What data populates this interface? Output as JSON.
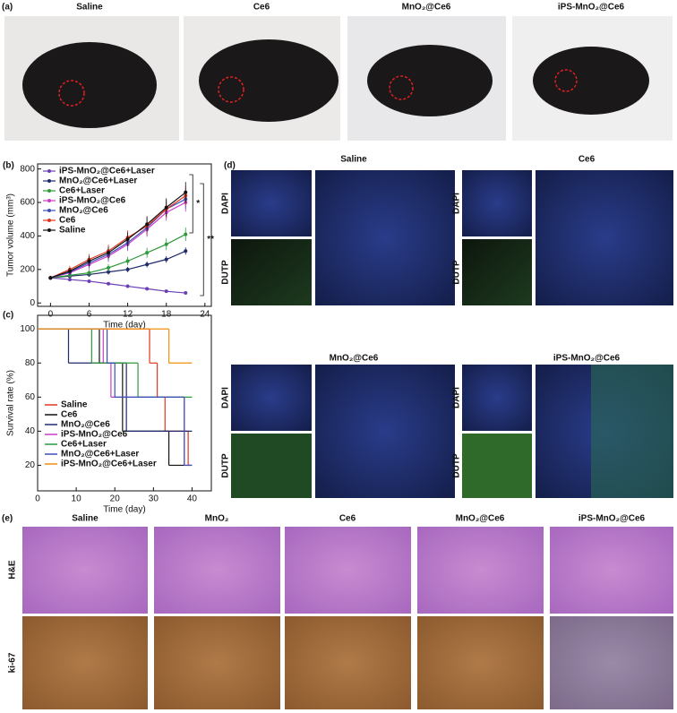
{
  "panel_a": {
    "label": "(a)",
    "titles": [
      "Saline",
      "Ce6",
      "MnO₂@Ce6",
      "iPS-MnO₂@Ce6"
    ]
  },
  "chart_data": [
    {
      "type": "line",
      "panel_label": "(b)",
      "xlabel": "Time (day)",
      "ylabel": "Tumor volume (mm³)",
      "x": [
        0,
        3,
        6,
        9,
        12,
        15,
        18,
        21
      ],
      "xlim": [
        -2,
        25
      ],
      "xticks": [
        0,
        6,
        12,
        18,
        24
      ],
      "ylim": [
        -20,
        830
      ],
      "yticks": [
        0,
        200,
        400,
        600,
        800
      ],
      "annotations": [
        "*",
        "**"
      ],
      "series": [
        {
          "name": "iPS-MnO₂@Ce6+Laser",
          "color": "#6a3fb5",
          "values": [
            150,
            140,
            130,
            115,
            100,
            85,
            70,
            60
          ],
          "errors": [
            8,
            8,
            8,
            8,
            7,
            6,
            6,
            5
          ]
        },
        {
          "name": "MnO₂@Ce6+Laser",
          "color": "#1f2a6b",
          "values": [
            150,
            160,
            170,
            185,
            200,
            230,
            260,
            310
          ],
          "errors": [
            10,
            12,
            14,
            15,
            16,
            18,
            20,
            22
          ]
        },
        {
          "name": "Ce6+Laser",
          "color": "#2e9a3a",
          "values": [
            150,
            165,
            180,
            210,
            250,
            300,
            350,
            410
          ],
          "errors": [
            10,
            14,
            18,
            22,
            25,
            30,
            35,
            40
          ]
        },
        {
          "name": "iPS-MnO₂@Ce6",
          "color": "#c83cc8",
          "values": [
            150,
            180,
            230,
            280,
            350,
            440,
            540,
            600
          ],
          "errors": [
            12,
            20,
            30,
            35,
            40,
            45,
            50,
            55
          ]
        },
        {
          "name": "MnO₂@Ce6",
          "color": "#3a4fb8",
          "values": [
            150,
            185,
            240,
            290,
            360,
            450,
            560,
            620
          ],
          "errors": [
            12,
            22,
            30,
            38,
            42,
            48,
            52,
            58
          ]
        },
        {
          "name": "Ce6",
          "color": "#e2351f",
          "values": [
            150,
            200,
            260,
            310,
            390,
            460,
            560,
            640
          ],
          "errors": [
            12,
            22,
            32,
            38,
            44,
            50,
            55,
            60
          ]
        },
        {
          "name": "Saline",
          "color": "#111111",
          "values": [
            150,
            190,
            250,
            300,
            380,
            470,
            570,
            660
          ],
          "errors": [
            12,
            20,
            30,
            36,
            42,
            48,
            55,
            62
          ]
        }
      ]
    },
    {
      "type": "step",
      "panel_label": "(c)",
      "xlabel": "Time (day)",
      "ylabel": "Survival rate (%)",
      "xlim": [
        0,
        45
      ],
      "xticks": [
        0,
        10,
        20,
        30,
        40
      ],
      "ylim": [
        5,
        108
      ],
      "yticks": [
        20,
        40,
        60,
        80,
        100
      ],
      "series": [
        {
          "name": "Saline",
          "color": "#e2351f",
          "x": [
            0,
            29,
            31,
            33,
            39,
            40
          ],
          "values": [
            100,
            80,
            60,
            40,
            20,
            20
          ]
        },
        {
          "name": "Ce6",
          "color": "#111111",
          "x": [
            0,
            16,
            22,
            34,
            38
          ],
          "values": [
            100,
            80,
            40,
            20,
            20
          ]
        },
        {
          "name": "MnO₂@Ce6",
          "color": "#1f2a6b",
          "x": [
            0,
            8,
            23,
            40
          ],
          "values": [
            100,
            80,
            40,
            40
          ]
        },
        {
          "name": "iPS-MnO₂@Ce6",
          "color": "#c83cc8",
          "x": [
            0,
            17,
            19,
            38,
            40
          ],
          "values": [
            100,
            80,
            60,
            20,
            20
          ]
        },
        {
          "name": "Ce6+Laser",
          "color": "#2e9a3a",
          "x": [
            0,
            14,
            26,
            40
          ],
          "values": [
            100,
            80,
            60,
            60
          ]
        },
        {
          "name": "MnO₂@Ce6+Laser",
          "color": "#3a4fb8",
          "x": [
            0,
            18,
            20,
            38,
            40
          ],
          "values": [
            100,
            80,
            60,
            20,
            20
          ]
        },
        {
          "name": "iPS-MnO₂@Ce6+Laser",
          "color": "#f0900f",
          "x": [
            0,
            34,
            40
          ],
          "values": [
            100,
            80,
            80
          ]
        }
      ]
    }
  ],
  "panel_d": {
    "label": "(d)",
    "groups": [
      "Saline",
      "Ce6",
      "MnO₂@Ce6",
      "iPS-MnO₂@Ce6"
    ],
    "stains": [
      "DAPI",
      "DUTP"
    ]
  },
  "panel_e": {
    "label": "(e)",
    "titles": [
      "Saline",
      "MnO₂",
      "Ce6",
      "MnO₂@Ce6",
      "iPS-MnO₂@Ce6"
    ],
    "rows": [
      "H&E",
      "ki-67"
    ]
  }
}
